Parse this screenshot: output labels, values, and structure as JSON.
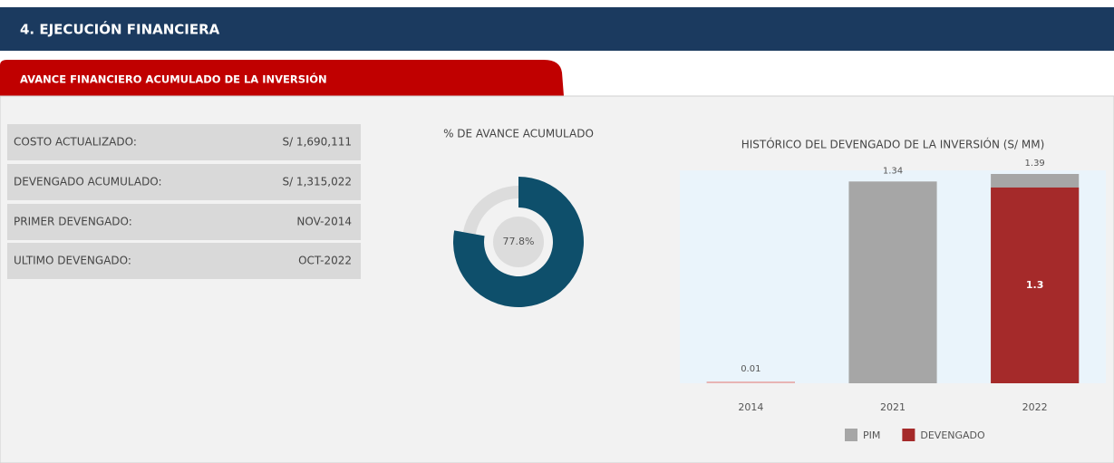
{
  "header": {
    "title": "4. EJECUCIÓN FINANCIERA"
  },
  "tab": {
    "title": "AVANCE FINANCIERO ACUMULADO DE LA INVERSIÓN"
  },
  "table": {
    "rows": [
      [
        "COSTO ACTUALIZADO:",
        "S/ 1,690,111"
      ],
      [
        "DEVENGADO ACUMULADO:",
        "S/ 1,315,022"
      ],
      [
        "PRIMER DEVENGADO:",
        "NOV-2014"
      ],
      [
        "ULTIMO DEVENGADO:",
        "OCT-2022"
      ]
    ]
  },
  "chart_data": [
    {
      "type": "donut",
      "title": "% DE AVANCE ACUMULADO",
      "values": [
        77.8
      ],
      "value_labels": [
        "77.8%"
      ],
      "color": "#0e4f6b",
      "track_color": "#dcdcdc"
    },
    {
      "type": "bar",
      "title": "HISTÓRICO DEL DEVENGADO DE LA INVERSIÓN (S/ MM)",
      "categories": [
        "2014",
        "2021",
        "2022"
      ],
      "series": [
        {
          "name": "PIM",
          "color": "#a6a6a6",
          "values": [
            0.01,
            1.34,
            1.39
          ]
        },
        {
          "name": "DEVENGADO",
          "color": "#a52a2a",
          "values": [
            0.01,
            null,
            1.3
          ]
        }
      ]
    }
  ]
}
